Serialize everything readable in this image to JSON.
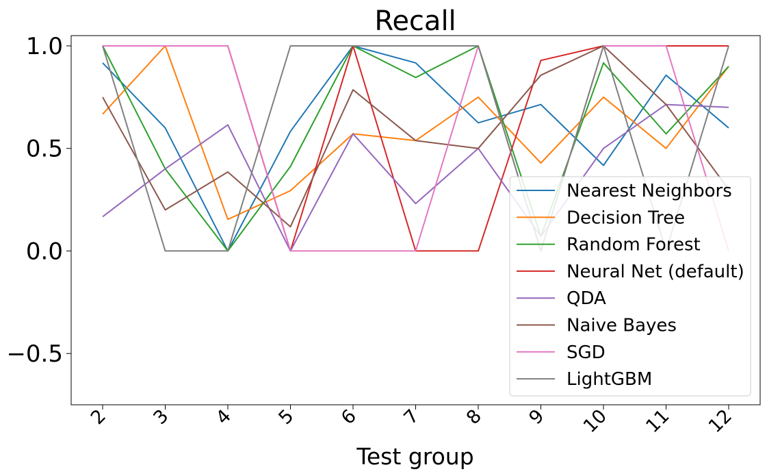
{
  "chart_data": {
    "type": "line",
    "title": "Recall",
    "xlabel": "Test group",
    "ylabel": "",
    "categories": [
      "2",
      "3",
      "4",
      "5",
      "6",
      "7",
      "8",
      "9",
      "10",
      "11",
      "12"
    ],
    "yticks": [
      "1.0",
      "0.5",
      "0.0",
      "−0.5"
    ],
    "ytick_values": [
      1.0,
      0.5,
      0.0,
      -0.5
    ],
    "ylim": [
      -0.75,
      1.05
    ],
    "grid": false,
    "legend_position": "lower-right",
    "series": [
      {
        "name": "Nearest Neighbors",
        "color": "#1f77b4",
        "values": [
          0.917,
          0.6,
          0.0,
          0.583,
          1.0,
          0.917,
          0.625,
          0.714,
          0.417,
          0.857,
          0.6
        ]
      },
      {
        "name": "Decision Tree",
        "color": "#ff7f0e",
        "values": [
          0.667,
          1.0,
          0.154,
          0.294,
          0.571,
          0.538,
          0.75,
          0.429,
          0.75,
          0.5,
          0.9
        ]
      },
      {
        "name": "Random Forest",
        "color": "#2ca02c",
        "values": [
          1.0,
          0.4,
          0.0,
          0.412,
          1.0,
          0.846,
          1.0,
          0.071,
          0.917,
          0.571,
          0.9
        ]
      },
      {
        "name": "Neural Net (default)",
        "color": "#d62728",
        "values": [
          1.0,
          1.0,
          1.0,
          0.0,
          1.0,
          0.0,
          0.0,
          0.929,
          1.0,
          1.0,
          1.0
        ]
      },
      {
        "name": "QDA",
        "color": "#9467bd",
        "values": [
          0.167,
          0.4,
          0.615,
          0.0,
          0.571,
          0.231,
          0.5,
          0.071,
          0.5,
          0.714,
          0.7
        ]
      },
      {
        "name": "Naive Bayes",
        "color": "#8c564b",
        "values": [
          0.75,
          0.2,
          0.385,
          0.118,
          0.786,
          0.538,
          0.5,
          0.857,
          1.0,
          0.714,
          0.3
        ]
      },
      {
        "name": "SGD",
        "color": "#e377c2",
        "values": [
          1.0,
          1.0,
          1.0,
          0.0,
          0.0,
          0.0,
          1.0,
          0.0,
          1.0,
          1.0,
          0.0
        ]
      },
      {
        "name": "LightGBM",
        "color": "#7f7f7f",
        "values": [
          1.0,
          0.0,
          0.0,
          1.0,
          1.0,
          1.0,
          1.0,
          0.0,
          1.0,
          0.0,
          1.0
        ]
      }
    ]
  }
}
